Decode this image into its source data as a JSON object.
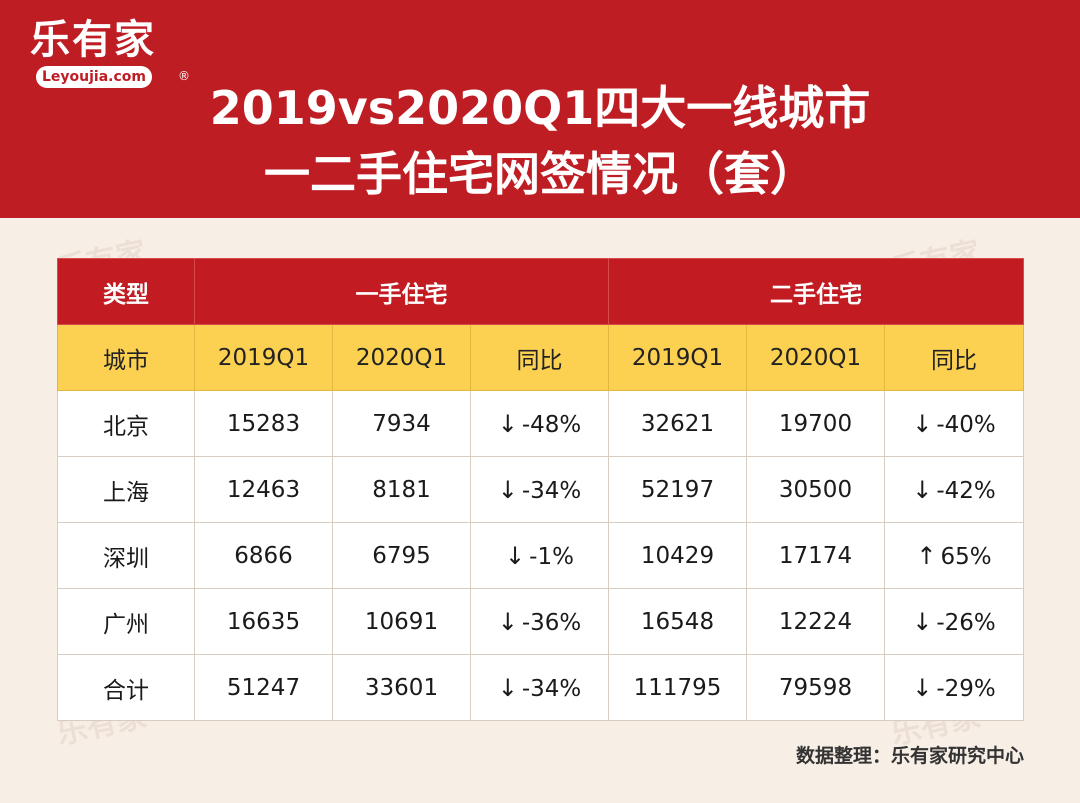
{
  "brand": {
    "logo_cn": "乐有家",
    "logo_en": "Leyoujia.com",
    "reg_mark": "®"
  },
  "title": {
    "line1": "2019vs2020Q1四大一线城市",
    "line2": "一二手住宅网签情况（套）"
  },
  "colors": {
    "header_bg": "#bf1d24",
    "group_header_bg": "#c21c22",
    "sub_header_bg": "#fcd152",
    "decrease": "#157a36",
    "increase": "#cf2a2a"
  },
  "chart_data": {
    "type": "table",
    "group_header": {
      "type_label": "类型",
      "groups": [
        "一手住宅",
        "二手住宅"
      ]
    },
    "columns": [
      "城市",
      "2019Q1",
      "2020Q1",
      "同比",
      "2019Q1",
      "2020Q1",
      "同比"
    ],
    "rows": [
      {
        "city": "北京",
        "new_2019": "15283",
        "new_2020": "7934",
        "new_yoy_dir": "down",
        "new_yoy_arrow": "↓",
        "new_yoy": "-48%",
        "second_2019": "32621",
        "second_2020": "19700",
        "second_yoy_dir": "down",
        "second_yoy_arrow": "↓",
        "second_yoy": "-40%"
      },
      {
        "city": "上海",
        "new_2019": "12463",
        "new_2020": "8181",
        "new_yoy_dir": "down",
        "new_yoy_arrow": "↓",
        "new_yoy": "-34%",
        "second_2019": "52197",
        "second_2020": "30500",
        "second_yoy_dir": "down",
        "second_yoy_arrow": "↓",
        "second_yoy": "-42%"
      },
      {
        "city": "深圳",
        "new_2019": "6866",
        "new_2020": "6795",
        "new_yoy_dir": "down",
        "new_yoy_arrow": "↓",
        "new_yoy": "-1%",
        "second_2019": "10429",
        "second_2020": "17174",
        "second_yoy_dir": "up",
        "second_yoy_arrow": "↑",
        "second_yoy": "65%"
      },
      {
        "city": "广州",
        "new_2019": "16635",
        "new_2020": "10691",
        "new_yoy_dir": "down",
        "new_yoy_arrow": "↓",
        "new_yoy": "-36%",
        "second_2019": "16548",
        "second_2020": "12224",
        "second_yoy_dir": "down",
        "second_yoy_arrow": "↓",
        "second_yoy": "-26%"
      },
      {
        "city": "合计",
        "new_2019": "51247",
        "new_2020": "33601",
        "new_yoy_dir": "down",
        "new_yoy_arrow": "↓",
        "new_yoy": "-34%",
        "second_2019": "111795",
        "second_2020": "79598",
        "second_yoy_dir": "down",
        "second_yoy_arrow": "↓",
        "second_yoy": "-29%"
      }
    ]
  },
  "footer": {
    "source": "数据整理：乐有家研究中心"
  }
}
